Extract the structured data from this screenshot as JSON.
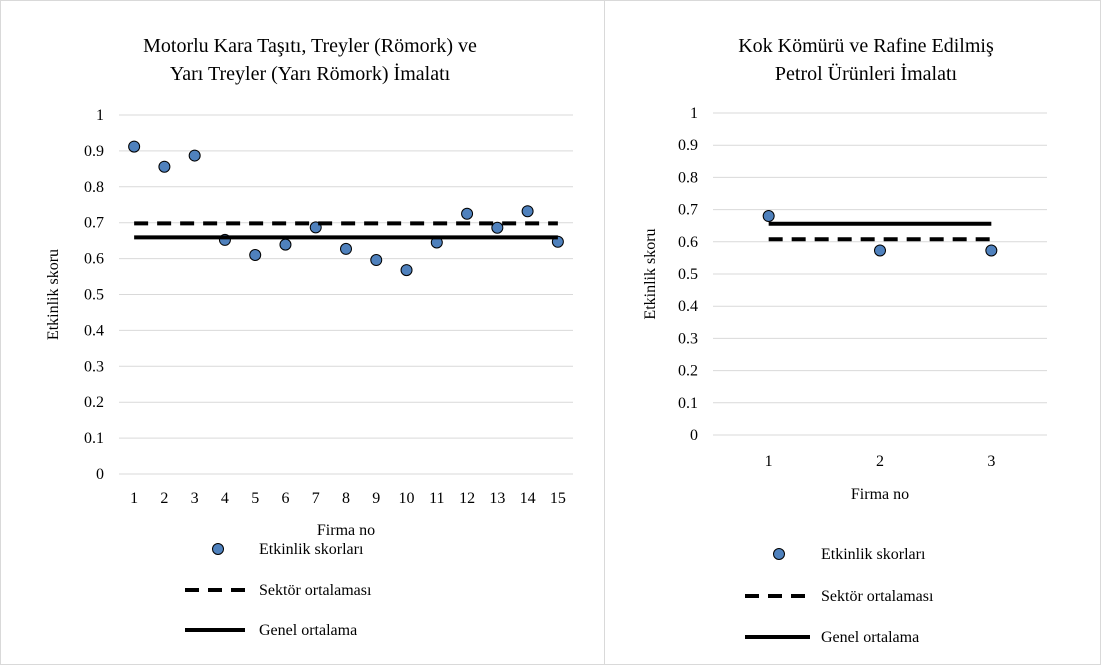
{
  "chart_data": [
    {
      "type": "scatter",
      "title": "Motorlu Kara Taşıtı, Treyler (Römork) ve Yarı Treyler (Yarı Römork) İmalatı",
      "title_lines": [
        "Motorlu Kara Taşıtı, Treyler (Römork) ve",
        "Yarı Treyler (Yarı Römork) İmalatı"
      ],
      "xlabel": "Firma no",
      "ylabel": "Etkinlik skoru",
      "ylim": [
        0,
        1
      ],
      "yticks": [
        "0",
        "0.1",
        "0.2",
        "0.3",
        "0.4",
        "0.5",
        "0.6",
        "0.7",
        "0.8",
        "0.9",
        "1"
      ],
      "categories": [
        "1",
        "2",
        "3",
        "4",
        "5",
        "6",
        "7",
        "8",
        "9",
        "10",
        "11",
        "12",
        "13",
        "14",
        "15"
      ],
      "grid": true,
      "legend_position": "bottom",
      "series": [
        {
          "name": "Etkinlik skorları",
          "style": "markers",
          "color": "#4f81bd",
          "values": [
            0.912,
            0.856,
            0.887,
            0.652,
            0.61,
            0.639,
            0.687,
            0.627,
            0.596,
            0.568,
            0.645,
            0.725,
            0.686,
            0.732,
            0.647
          ]
        },
        {
          "name": "Sektör ortalaması",
          "style": "dashed",
          "color": "#000000",
          "value": 0.698
        },
        {
          "name": "Genel ortalama",
          "style": "solid",
          "color": "#000000",
          "value": 0.659
        }
      ]
    },
    {
      "type": "scatter",
      "title": "Kok Kömürü ve Rafine Edilmiş Petrol Ürünleri İmalatı",
      "title_lines": [
        "Kok Kömürü ve Rafine Edilmiş",
        "Petrol Ürünleri İmalatı"
      ],
      "xlabel": "Firma no",
      "ylabel": "Etkinlik skoru",
      "ylim": [
        0,
        1
      ],
      "yticks": [
        "0",
        "0.1",
        "0.2",
        "0.3",
        "0.4",
        "0.5",
        "0.6",
        "0.7",
        "0.8",
        "0.9",
        "1"
      ],
      "categories": [
        "1",
        "2",
        "3"
      ],
      "grid": true,
      "legend_position": "bottom",
      "series": [
        {
          "name": "Etkinlik skorları",
          "style": "markers",
          "color": "#4f81bd",
          "values": [
            0.68,
            0.573,
            0.573
          ]
        },
        {
          "name": "Sektör ortalaması",
          "style": "dashed",
          "color": "#000000",
          "value": 0.608
        },
        {
          "name": "Genel ortalama",
          "style": "solid",
          "color": "#000000",
          "value": 0.656
        }
      ]
    }
  ]
}
